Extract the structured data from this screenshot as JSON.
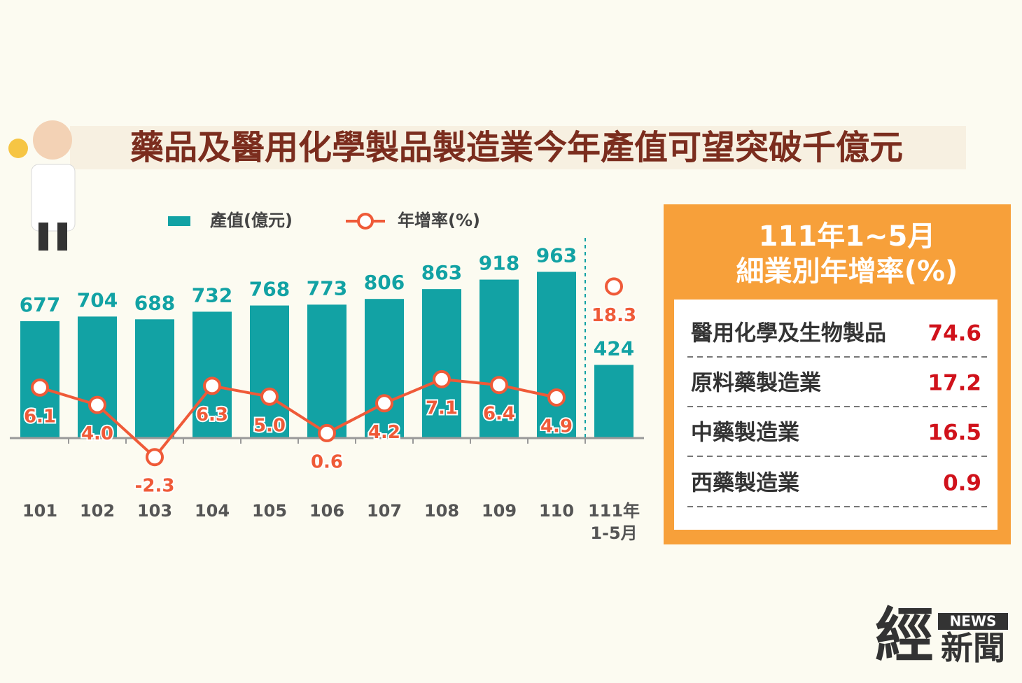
{
  "chart_data": {
    "type": "bar",
    "title": "藥品及醫用化學製品製造業今年產值可望突破千億元",
    "categories": [
      "101",
      "102",
      "103",
      "104",
      "105",
      "106",
      "107",
      "108",
      "109",
      "110",
      "111年\n1-5月"
    ],
    "series": [
      {
        "name": "產值(億元)",
        "color": "#12a2a4",
        "values": [
          677,
          704,
          688,
          732,
          768,
          773,
          806,
          863,
          918,
          963,
          424
        ]
      },
      {
        "name": "年增率(%)",
        "color": "#ef5a38",
        "axis": "y2",
        "type": "line",
        "values": [
          6.1,
          4.0,
          -2.3,
          6.3,
          5.0,
          0.6,
          4.2,
          7.1,
          6.4,
          4.9,
          18.3
        ]
      }
    ],
    "separator_before": 10,
    "ylim": [
      0,
      1200
    ],
    "y2lim": [
      0,
      25
    ]
  },
  "panel": {
    "title": [
      "111年1~5月",
      "細業別年增率(%)"
    ],
    "rows": [
      [
        "醫用化學及生物製品",
        "74.6"
      ],
      [
        "原料藥製造業",
        "17.2"
      ],
      [
        "中藥製造業",
        "16.5"
      ],
      [
        "西藥製造業",
        "0.9"
      ]
    ]
  },
  "logo": {
    "mark": "經",
    "badge": "NEWS",
    "name": "新聞"
  }
}
